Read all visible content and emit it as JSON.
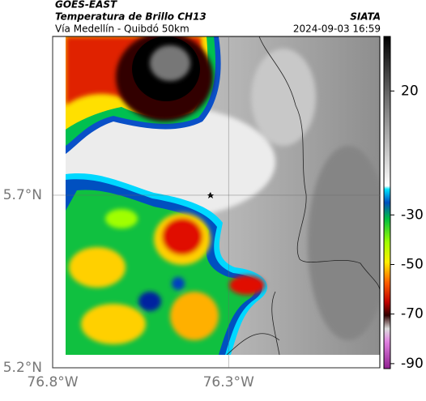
{
  "header": {
    "source": "GOES-EAST",
    "title": "Temperatura de Brillo CH13",
    "subtitle": "Vía Medellín - Quibdó 50km",
    "credit": "SIATA",
    "timestamp": "2024-09-03 16:59"
  },
  "map": {
    "xlim": [
      -76.8,
      -75.87
    ],
    "xticks": [
      {
        "value": -76.8,
        "label": "76.8°W"
      },
      {
        "value": -76.3,
        "label": "76.3°W"
      }
    ],
    "ylim": [
      5.2,
      6.16
    ],
    "yticks": [
      {
        "value": 5.2,
        "label": "5.2°N"
      },
      {
        "value": 5.7,
        "label": "5.7°N"
      }
    ],
    "grid": true
  },
  "colorbar": {
    "lim": [
      -92,
      42
    ],
    "ticks": [
      20,
      -30,
      -50,
      -70,
      -90
    ]
  }
}
